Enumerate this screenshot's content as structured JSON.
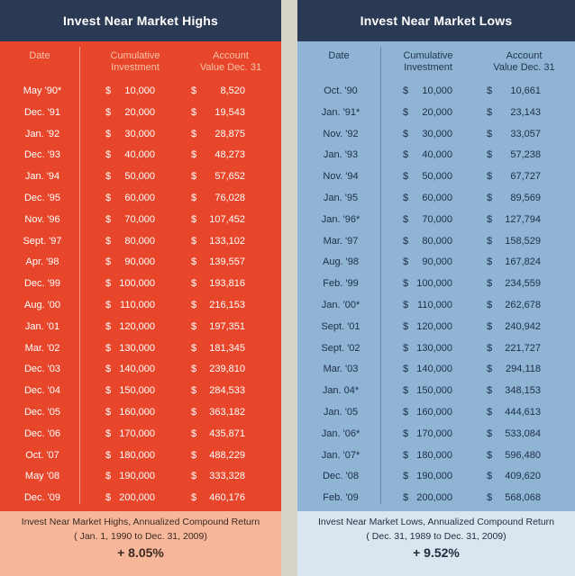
{
  "left": {
    "title": "Invest Near Market Highs",
    "headers": {
      "date": "Date",
      "cumulative": "Cumulative\nInvestment",
      "account": "Account\nValue Dec. 31"
    },
    "rows": [
      {
        "date": "May '90*",
        "cum": "10,000",
        "val": "8,520"
      },
      {
        "date": "Dec. '91",
        "cum": "20,000",
        "val": "19,543"
      },
      {
        "date": "Jan. '92",
        "cum": "30,000",
        "val": "28,875"
      },
      {
        "date": "Dec. '93",
        "cum": "40,000",
        "val": "48,273"
      },
      {
        "date": "Jan. '94",
        "cum": "50,000",
        "val": "57,652"
      },
      {
        "date": "Dec. '95",
        "cum": "60,000",
        "val": "76,028"
      },
      {
        "date": "Nov. '96",
        "cum": "70,000",
        "val": "107,452"
      },
      {
        "date": "Sept. '97",
        "cum": "80,000",
        "val": "133,102"
      },
      {
        "date": "Apr. '98",
        "cum": "90,000",
        "val": "139,557"
      },
      {
        "date": "Dec. '99",
        "cum": "100,000",
        "val": "193,816"
      },
      {
        "date": "Aug. '00",
        "cum": "110,000",
        "val": "216,153"
      },
      {
        "date": "Jan. '01",
        "cum": "120,000",
        "val": "197,351"
      },
      {
        "date": "Mar. '02",
        "cum": "130,000",
        "val": "181,345"
      },
      {
        "date": "Dec. '03",
        "cum": "140,000",
        "val": "239,810"
      },
      {
        "date": "Dec. '04",
        "cum": "150,000",
        "val": "284,533"
      },
      {
        "date": "Dec. '05",
        "cum": "160,000",
        "val": "363,182"
      },
      {
        "date": "Dec. '06",
        "cum": "170,000",
        "val": "435,871"
      },
      {
        "date": "Oct. '07",
        "cum": "180,000",
        "val": "488,229"
      },
      {
        "date": "May '08",
        "cum": "190,000",
        "val": "333,328"
      },
      {
        "date": "Dec. '09",
        "cum": "200,000",
        "val": "460,176"
      }
    ],
    "footer": {
      "line1": "Invest Near Market Highs,  Annualized Compound Return",
      "line2": "( Jan. 1, 1990 to Dec. 31, 2009)",
      "pct": "+ 8.05%"
    }
  },
  "right": {
    "title": "Invest Near Market Lows",
    "headers": {
      "date": "Date",
      "cumulative": "Cumulative\nInvestment",
      "account": "Account\nValue Dec. 31"
    },
    "rows": [
      {
        "date": "Oct. '90",
        "cum": "10,000",
        "val": "10,661"
      },
      {
        "date": "Jan. '91*",
        "cum": "20,000",
        "val": "23,143"
      },
      {
        "date": "Nov. '92",
        "cum": "30,000",
        "val": "33,057"
      },
      {
        "date": "Jan. '93",
        "cum": "40,000",
        "val": "57,238"
      },
      {
        "date": "Nov. '94",
        "cum": "50,000",
        "val": "67,727"
      },
      {
        "date": "Jan. '95",
        "cum": "60,000",
        "val": "89,569"
      },
      {
        "date": "Jan. '96*",
        "cum": "70,000",
        "val": "127,794"
      },
      {
        "date": "Mar. '97",
        "cum": "80,000",
        "val": "158,529"
      },
      {
        "date": "Aug. '98",
        "cum": "90,000",
        "val": "167,824"
      },
      {
        "date": "Feb. '99",
        "cum": "100,000",
        "val": "234,559"
      },
      {
        "date": "Jan. '00*",
        "cum": "110,000",
        "val": "262,678"
      },
      {
        "date": "Sept. '01",
        "cum": "120,000",
        "val": "240,942"
      },
      {
        "date": "Sept. '02",
        "cum": "130,000",
        "val": "221,727"
      },
      {
        "date": "Mar. '03",
        "cum": "140,000",
        "val": "294,118"
      },
      {
        "date": "Jan. 04*",
        "cum": "150,000",
        "val": "348,153"
      },
      {
        "date": "Jan. '05",
        "cum": "160,000",
        "val": "444,613"
      },
      {
        "date": "Jan. '06*",
        "cum": "170,000",
        "val": "533,084"
      },
      {
        "date": "Jan. '07*",
        "cum": "180,000",
        "val": "596,480"
      },
      {
        "date": "Dec. '08",
        "cum": "190,000",
        "val": "409,620"
      },
      {
        "date": "Feb. '09",
        "cum": "200,000",
        "val": "568,068"
      }
    ],
    "footer": {
      "line1": "Invest Near Market Lows, Annualized Compound Return",
      "line2": "( Dec. 31, 1989 to Dec. 31, 2009)",
      "pct": "+ 9.52%"
    }
  },
  "currency_symbol": "$",
  "colors": {
    "header": "#2a3a55",
    "left_body": "#e8462a",
    "right_body": "#8fb4d4",
    "left_footer": "#f6b79a",
    "right_footer": "#d9e6ef"
  }
}
